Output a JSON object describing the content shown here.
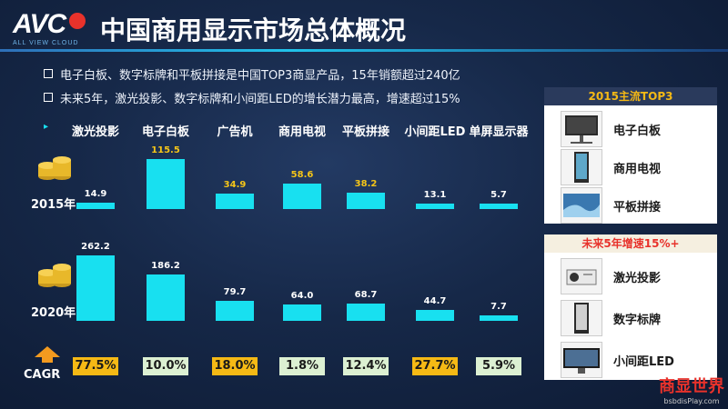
{
  "header": {
    "logo_text": "AVC",
    "logo_sub": "ALL VIEW CLOUD",
    "title": "中国商用显示市场总体概况"
  },
  "bullets": [
    "电子白板、数字标牌和平板拼接是中国TOP3商显产品，15年销额超过240亿",
    "未来5年，激光投影、数字标牌和小间距LED的增长潜力最高，增速超过15%"
  ],
  "colors": {
    "bar": "#18e0f0",
    "highlight_value": "#f5c518",
    "cagr_yellow": "#f5b915",
    "cagr_green": "#dcf0d2"
  },
  "chart_data": {
    "type": "bar",
    "categories": [
      "激光投影",
      "电子白板",
      "广告机",
      "商用电视",
      "平板拼接",
      "小间距LED",
      "单屏显示器"
    ],
    "series": [
      {
        "name": "2015年",
        "values": [
          14.9,
          115.5,
          34.9,
          58.6,
          38.2,
          13.1,
          5.7
        ]
      },
      {
        "name": "2020年",
        "values": [
          262.2,
          186.2,
          79.7,
          64.0,
          68.7,
          44.7,
          7.7
        ]
      }
    ],
    "value_labels": {
      "2015": [
        "14.9",
        "115.5",
        "34.9",
        "58.6",
        "38.2",
        "13.1",
        "5.7"
      ],
      "2020": [
        "262.2",
        "186.2",
        "79.7",
        "64.0",
        "68.7",
        "44.7",
        "7.7"
      ]
    },
    "highlight_2015": [
      false,
      true,
      true,
      true,
      true,
      false,
      false
    ],
    "cagr_label": "CAGR",
    "cagr": [
      "77.5%",
      "10.0%",
      "18.0%",
      "1.8%",
      "12.4%",
      "27.7%",
      "5.9%"
    ],
    "cagr_highlight": [
      true,
      false,
      true,
      false,
      false,
      true,
      false
    ]
  },
  "panel_top": {
    "title": "2015主流TOP3",
    "items": [
      "电子白板",
      "商用电视",
      "平板拼接"
    ]
  },
  "panel_bottom": {
    "title": "未来5年增速15%+",
    "items": [
      "激光投影",
      "数字标牌",
      "小间距LED"
    ]
  },
  "watermark": {
    "title": "商显世界",
    "url": "bsbdisPlay.com"
  }
}
